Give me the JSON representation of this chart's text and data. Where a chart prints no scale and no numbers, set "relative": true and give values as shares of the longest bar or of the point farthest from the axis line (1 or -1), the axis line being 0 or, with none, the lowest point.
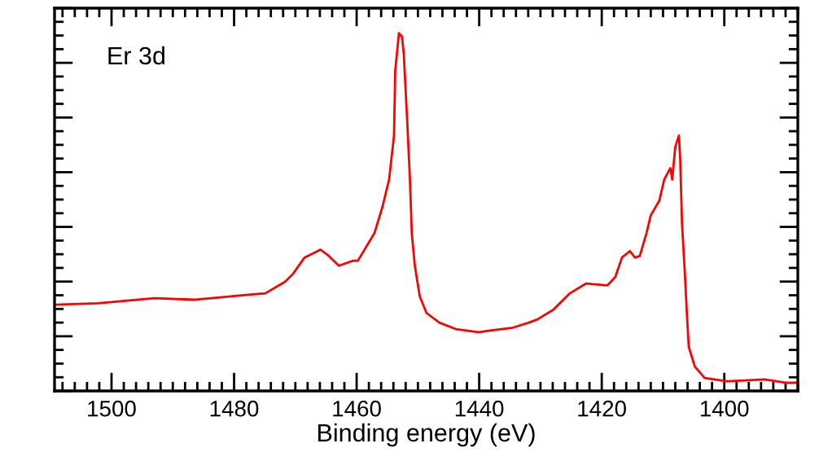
{
  "chart_data": {
    "type": "line",
    "relative": true,
    "xlabel": "Binding energy (eV)",
    "annotations": [
      "Er 3d"
    ],
    "xlim": [
      1509.3,
      1388
    ],
    "xticks": [
      1500,
      1480,
      1460,
      1440,
      1420,
      1400
    ],
    "grid": false,
    "legend": false,
    "marker": "none",
    "line_style": "solid",
    "tick_labels": "x",
    "series": [
      {
        "color": "#ff0000",
        "x": [
          1509.2,
          1502.3,
          1493.0,
          1486.3,
          1478.4,
          1474.9,
          1471.7,
          1470.4,
          1468.5,
          1465.9,
          1464.5,
          1462.9,
          1460.6,
          1459.8,
          1457.1,
          1455.8,
          1454.7,
          1453.9,
          1453.7,
          1453.1,
          1452.6,
          1452.3,
          1451.8,
          1451.3,
          1451.0,
          1450.5,
          1449.7,
          1448.6,
          1446.5,
          1443.8,
          1440.1,
          1438.5,
          1434.5,
          1431.9,
          1430.5,
          1427.9,
          1425.2,
          1422.6,
          1419.1,
          1417.8,
          1416.7,
          1415.4,
          1414.6,
          1413.8,
          1412.7,
          1412.0,
          1410.6,
          1409.8,
          1408.8,
          1408.5,
          1408.0,
          1407.4,
          1407.2,
          1406.9,
          1406.4,
          1406.1,
          1405.8,
          1404.8,
          1403.2,
          1399.5,
          1393.4,
          1390.0,
          1388.2
        ],
        "values": [
          0.241,
          0.245,
          0.259,
          0.255,
          0.268,
          0.273,
          0.305,
          0.327,
          0.373,
          0.395,
          0.377,
          0.35,
          0.364,
          0.364,
          0.441,
          0.514,
          0.591,
          0.714,
          0.895,
          1.0,
          0.991,
          0.941,
          0.773,
          0.591,
          0.441,
          0.35,
          0.264,
          0.218,
          0.191,
          0.173,
          0.164,
          0.168,
          0.177,
          0.191,
          0.2,
          0.227,
          0.273,
          0.3,
          0.295,
          0.318,
          0.373,
          0.391,
          0.373,
          0.377,
          0.441,
          0.491,
          0.532,
          0.591,
          0.623,
          0.591,
          0.682,
          0.714,
          0.65,
          0.468,
          0.318,
          0.214,
          0.123,
          0.068,
          0.036,
          0.027,
          0.032,
          0.023,
          0.023
        ]
      }
    ]
  }
}
